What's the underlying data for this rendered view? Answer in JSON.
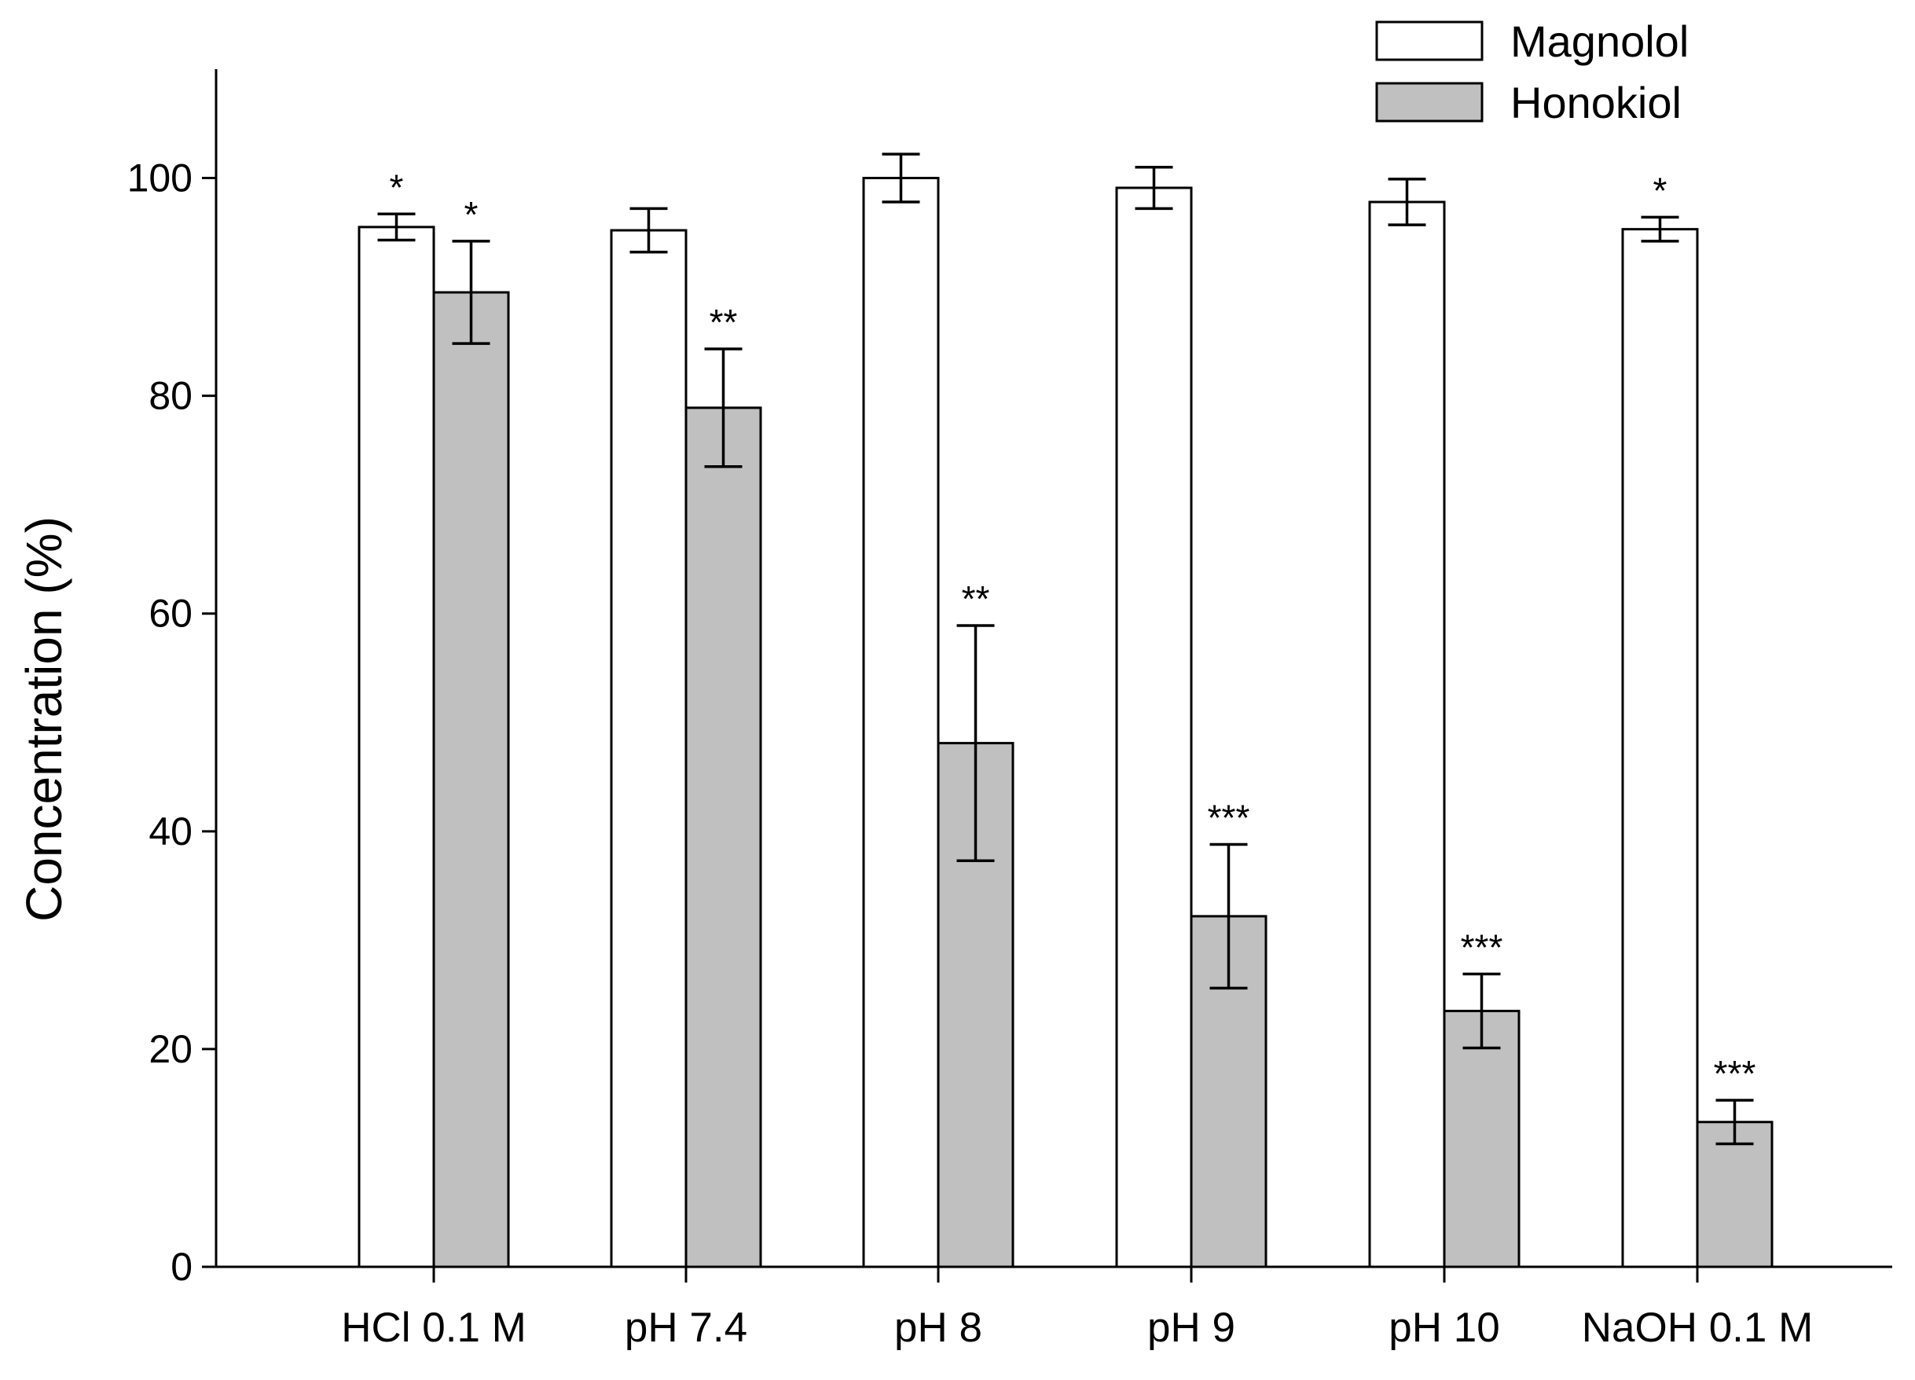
{
  "chart_data": {
    "type": "bar",
    "title": "",
    "xlabel": "",
    "ylabel": "Concentration (%)",
    "ylim": [
      0,
      110
    ],
    "yticks": [
      0,
      20,
      40,
      60,
      80,
      100
    ],
    "grid": false,
    "legend_position": "top-right",
    "categories": [
      "HCl 0.1 M",
      "pH 7.4",
      "pH 8",
      "pH 9",
      "pH 10",
      "NaOH 0.1 M"
    ],
    "series": [
      {
        "name": "Magnolol",
        "color": "#ffffff",
        "values": [
          95.5,
          95.2,
          100.0,
          99.1,
          97.8,
          95.3
        ],
        "errors": [
          1.2,
          2.0,
          2.2,
          1.9,
          2.1,
          1.1
        ],
        "significance": [
          "*",
          "",
          "",
          "",
          "",
          "*"
        ]
      },
      {
        "name": "Honokiol",
        "color": "#c0c0c0",
        "values": [
          89.5,
          78.9,
          48.1,
          32.2,
          23.5,
          13.3
        ],
        "errors": [
          4.7,
          5.4,
          10.8,
          6.6,
          3.4,
          2.0
        ],
        "significance": [
          "*",
          "**",
          "**",
          "***",
          "***",
          "***"
        ]
      }
    ]
  }
}
